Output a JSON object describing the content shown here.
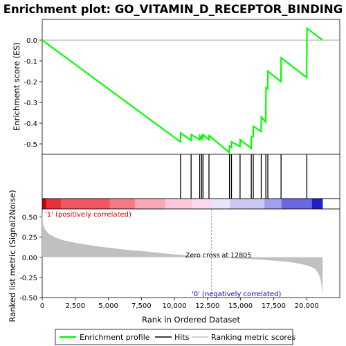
{
  "chart_data": [
    {
      "type": "line",
      "title": "Enrichment plot: GO_VITAMIN_D_RECEPTOR_BINDING",
      "ylabel": "Enrichment score (ES)",
      "ylim": [
        -0.55,
        0.1
      ],
      "yticks": [
        "0.0",
        "-0.1",
        "-0.2",
        "-0.3",
        "-0.4",
        "-0.5"
      ],
      "ytick_values": [
        0.0,
        -0.1,
        -0.2,
        -0.3,
        -0.4,
        -0.5
      ],
      "series": [
        {
          "name": "Enrichment profile",
          "color": "#00ff00",
          "x": [
            0,
            10450,
            10470,
            11250,
            11270,
            11900,
            11920,
            12050,
            12070,
            12150,
            12170,
            12600,
            12620,
            14150,
            14170,
            14300,
            14320,
            14950,
            14970,
            15800,
            15820,
            15950,
            15970,
            16550,
            16570,
            16900,
            16920,
            17050,
            17070,
            18050,
            18070,
            20000,
            20020,
            21200
          ],
          "y": [
            0.0,
            -0.49,
            -0.447,
            -0.483,
            -0.455,
            -0.48,
            -0.462,
            -0.477,
            -0.462,
            -0.47,
            -0.455,
            -0.48,
            -0.46,
            -0.541,
            -0.511,
            -0.516,
            -0.49,
            -0.512,
            -0.48,
            -0.521,
            -0.465,
            -0.465,
            -0.415,
            -0.44,
            -0.37,
            -0.395,
            -0.23,
            -0.235,
            -0.15,
            -0.2,
            -0.085,
            -0.18,
            0.057,
            0.0
          ]
        }
      ]
    },
    {
      "type": "scatter",
      "name": "Hits",
      "x": [
        10460,
        11260,
        11910,
        12060,
        12160,
        12610,
        14160,
        14310,
        14960,
        15810,
        15960,
        16560,
        16910,
        17060,
        18060,
        20010
      ]
    },
    {
      "type": "area",
      "title": "",
      "xlabel": "Rank in Ordered Dataset",
      "ylabel": "Ranked list metric (Signal2Noise)",
      "xlim": [
        0,
        22500
      ],
      "ylim": [
        -0.5,
        0.6
      ],
      "xticks": [
        "0",
        "2,500",
        "5,000",
        "7,500",
        "10,000",
        "12,500",
        "15,000",
        "17,500",
        "20,000"
      ],
      "xtick_values": [
        0,
        2500,
        5000,
        7500,
        10000,
        12500,
        15000,
        17500,
        20000
      ],
      "yticks": [
        "0.50",
        "0.25",
        "0.00",
        "-0.25",
        "-0.50"
      ],
      "ytick_values": [
        0.5,
        0.25,
        0.0,
        -0.25,
        -0.5
      ],
      "series": [
        {
          "name": "Ranking metric scores",
          "color": "#c0c0c0",
          "x": [
            0,
            50,
            200,
            500,
            1000,
            1500,
            2500,
            4000,
            6000,
            8000,
            10000,
            12000,
            12805,
            14000,
            15500,
            17000,
            18500,
            19500,
            20200,
            20600,
            20900,
            21050,
            21150,
            21200
          ],
          "y": [
            0.58,
            0.42,
            0.35,
            0.29,
            0.245,
            0.215,
            0.18,
            0.14,
            0.1,
            0.07,
            0.035,
            0.01,
            0.0,
            -0.01,
            -0.02,
            -0.035,
            -0.055,
            -0.08,
            -0.11,
            -0.14,
            -0.2,
            -0.28,
            -0.38,
            -0.47
          ]
        }
      ],
      "annotations": [
        {
          "text": "'1' (positively correlated)",
          "color": "#cc0000"
        },
        {
          "text": "Zero cross at 12805",
          "color": "#000000",
          "x": 12805
        },
        {
          "text": "'0' (negatively correlated)",
          "color": "#0000cc"
        }
      ]
    }
  ],
  "legend": {
    "placement": "bottom",
    "entries": [
      {
        "label": "Enrichment profile",
        "color": "#00ff00"
      },
      {
        "label": "Hits",
        "color": "#000000"
      },
      {
        "label": "Ranking metric scores",
        "color": "#c0c0c0"
      }
    ]
  },
  "colorbar": {
    "segments": [
      {
        "from": 0,
        "to": 300,
        "color": "#c80000"
      },
      {
        "from": 300,
        "to": 1400,
        "color": "#e8303a"
      },
      {
        "from": 1400,
        "to": 5100,
        "color": "#f05560"
      },
      {
        "from": 5100,
        "to": 7000,
        "color": "#f47a86"
      },
      {
        "from": 7000,
        "to": 9300,
        "color": "#f8a8b4"
      },
      {
        "from": 9300,
        "to": 11300,
        "color": "#fcc8dc"
      },
      {
        "from": 11300,
        "to": 12805,
        "color": "#fbd8ea"
      },
      {
        "from": 12805,
        "to": 14200,
        "color": "#e8e4f8"
      },
      {
        "from": 14200,
        "to": 16800,
        "color": "#c9c8f4"
      },
      {
        "from": 16800,
        "to": 18100,
        "color": "#a0a0ee"
      },
      {
        "from": 18100,
        "to": 20400,
        "color": "#6868e0"
      },
      {
        "from": 20400,
        "to": 21200,
        "color": "#2020c8"
      }
    ]
  }
}
